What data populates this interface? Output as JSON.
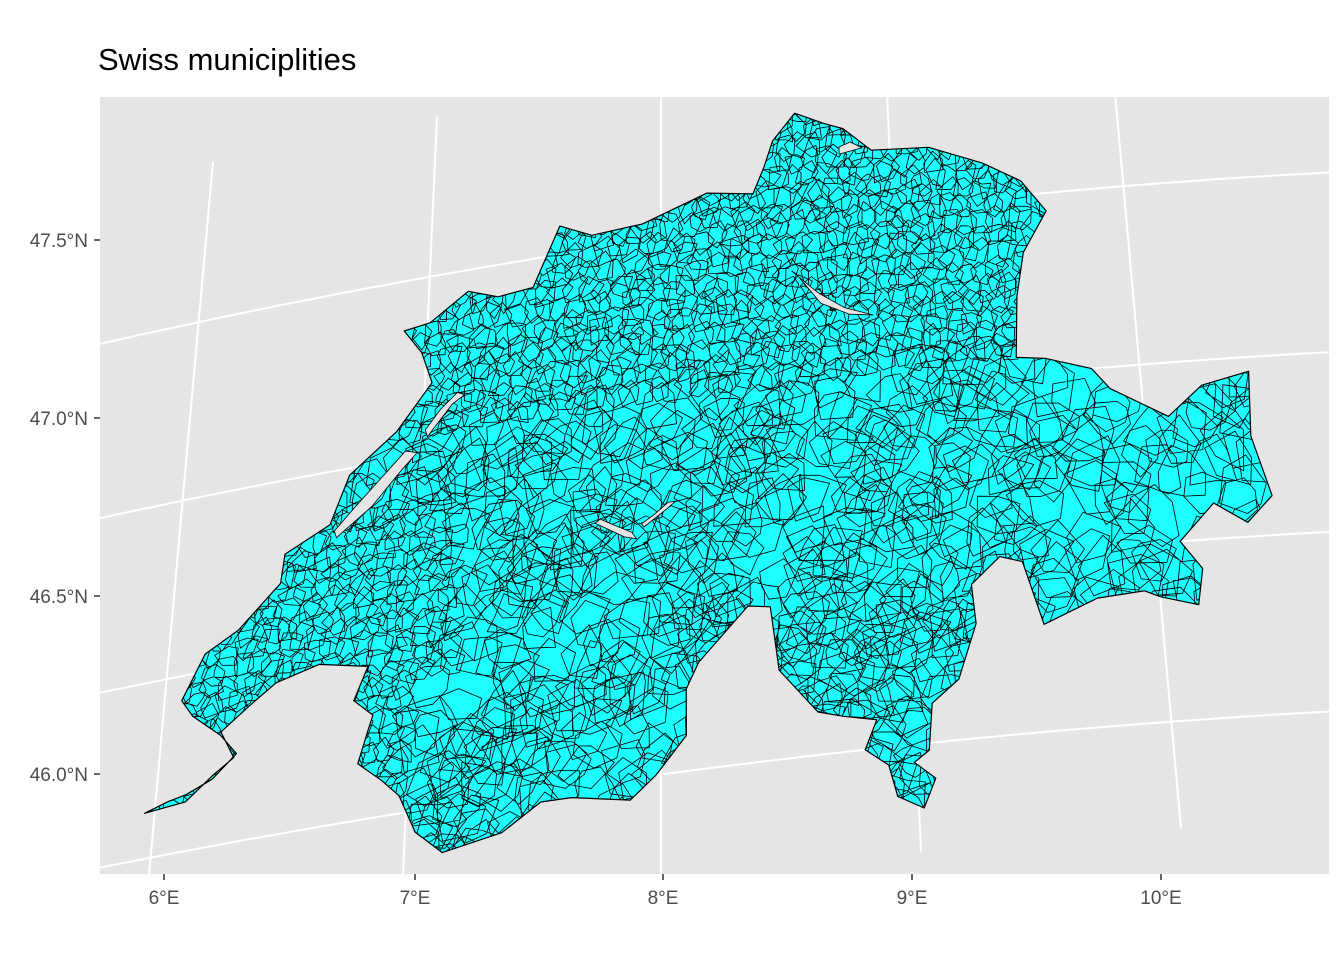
{
  "title": "Swiss municiplities",
  "chart_data": {
    "type": "map",
    "title": "Swiss municiplities",
    "projection": "conic",
    "panel_background": "#e5e5e5",
    "grid_color": "#ffffff",
    "fill_color": "#1dfffe",
    "border_color": "#000000",
    "x_axis": {
      "label": "",
      "ticks": [
        {
          "value": 6,
          "label": "6°E"
        },
        {
          "value": 7,
          "label": "7°E"
        },
        {
          "value": 8,
          "label": "8°E"
        },
        {
          "value": 9,
          "label": "9°E"
        },
        {
          "value": 10,
          "label": "10°E"
        }
      ]
    },
    "y_axis": {
      "label": "",
      "ticks": [
        {
          "value": 46.0,
          "label": "46.0°N"
        },
        {
          "value": 46.5,
          "label": "46.5°N"
        },
        {
          "value": 47.0,
          "label": "47.0°N"
        },
        {
          "value": 47.5,
          "label": "47.5°N"
        }
      ]
    },
    "lon_range": [
      5.9,
      10.5
    ],
    "lat_range": [
      45.8,
      47.85
    ],
    "outline": [
      [
        5.96,
        46.13
      ],
      [
        6.05,
        46.15
      ],
      [
        6.12,
        46.16
      ],
      [
        6.22,
        46.19
      ],
      [
        6.31,
        46.25
      ],
      [
        6.24,
        46.31
      ],
      [
        6.12,
        46.38
      ],
      [
        6.07,
        46.43
      ],
      [
        6.15,
        46.55
      ],
      [
        6.28,
        46.6
      ],
      [
        6.44,
        46.71
      ],
      [
        6.45,
        46.79
      ],
      [
        6.63,
        46.85
      ],
      [
        6.7,
        46.98
      ],
      [
        6.89,
        47.08
      ],
      [
        7.03,
        47.2
      ],
      [
        6.98,
        47.29
      ],
      [
        6.9,
        47.36
      ],
      [
        7.01,
        47.37
      ],
      [
        7.17,
        47.44
      ],
      [
        7.3,
        47.41
      ],
      [
        7.45,
        47.42
      ],
      [
        7.56,
        47.58
      ],
      [
        7.7,
        47.54
      ],
      [
        7.92,
        47.55
      ],
      [
        8.2,
        47.61
      ],
      [
        8.4,
        47.59
      ],
      [
        8.45,
        47.66
      ],
      [
        8.49,
        47.73
      ],
      [
        8.59,
        47.8
      ],
      [
        8.72,
        47.76
      ],
      [
        8.8,
        47.74
      ],
      [
        8.92,
        47.67
      ],
      [
        9.17,
        47.66
      ],
      [
        9.4,
        47.6
      ],
      [
        9.56,
        47.54
      ],
      [
        9.66,
        47.45
      ],
      [
        9.55,
        47.34
      ],
      [
        9.51,
        47.22
      ],
      [
        9.49,
        47.05
      ],
      [
        9.61,
        47.04
      ],
      [
        9.8,
        47.0
      ],
      [
        9.87,
        46.94
      ],
      [
        10.1,
        46.85
      ],
      [
        10.25,
        46.93
      ],
      [
        10.45,
        46.96
      ],
      [
        10.43,
        46.78
      ],
      [
        10.49,
        46.61
      ],
      [
        10.38,
        46.54
      ],
      [
        10.25,
        46.6
      ],
      [
        10.1,
        46.5
      ],
      [
        10.18,
        46.42
      ],
      [
        10.15,
        46.32
      ],
      [
        10.0,
        46.35
      ],
      [
        9.94,
        46.37
      ],
      [
        9.75,
        46.36
      ],
      [
        9.53,
        46.3
      ],
      [
        9.46,
        46.48
      ],
      [
        9.37,
        46.5
      ],
      [
        9.25,
        46.43
      ],
      [
        9.26,
        46.32
      ],
      [
        9.18,
        46.17
      ],
      [
        9.07,
        46.11
      ],
      [
        9.05,
        45.98
      ],
      [
        8.99,
        45.95
      ],
      [
        9.07,
        45.9
      ],
      [
        9.02,
        45.82
      ],
      [
        8.92,
        45.86
      ],
      [
        8.89,
        45.95
      ],
      [
        8.8,
        46.0
      ],
      [
        8.85,
        46.08
      ],
      [
        8.72,
        46.1
      ],
      [
        8.62,
        46.12
      ],
      [
        8.47,
        46.25
      ],
      [
        8.44,
        46.43
      ],
      [
        8.35,
        46.44
      ],
      [
        8.15,
        46.3
      ],
      [
        8.1,
        46.23
      ],
      [
        8.1,
        46.1
      ],
      [
        7.98,
        46.0
      ],
      [
        7.88,
        45.94
      ],
      [
        7.65,
        45.97
      ],
      [
        7.53,
        45.97
      ],
      [
        7.38,
        45.9
      ],
      [
        7.15,
        45.87
      ],
      [
        7.04,
        45.94
      ],
      [
        6.97,
        46.05
      ],
      [
        6.9,
        46.1
      ],
      [
        6.8,
        46.16
      ],
      [
        6.83,
        46.24
      ],
      [
        6.85,
        46.29
      ],
      [
        6.77,
        46.34
      ],
      [
        6.82,
        46.43
      ],
      [
        6.62,
        46.46
      ],
      [
        6.45,
        46.43
      ],
      [
        6.35,
        46.38
      ],
      [
        6.24,
        46.32
      ],
      [
        6.3,
        46.24
      ],
      [
        6.22,
        46.2
      ],
      [
        6.12,
        46.14
      ],
      [
        5.96,
        46.13
      ]
    ],
    "lakes": [
      [
        [
          6.66,
          46.81
        ],
        [
          6.8,
          46.88
        ],
        [
          6.92,
          46.97
        ],
        [
          6.98,
          47.01
        ],
        [
          6.93,
          47.02
        ],
        [
          6.84,
          46.96
        ],
        [
          6.72,
          46.88
        ],
        [
          6.65,
          46.83
        ]
      ],
      [
        [
          7.02,
          47.05
        ],
        [
          7.12,
          47.13
        ],
        [
          7.17,
          47.15
        ],
        [
          7.14,
          47.16
        ],
        [
          7.07,
          47.12
        ],
        [
          7.01,
          47.07
        ]
      ],
      [
        [
          7.73,
          46.73
        ],
        [
          7.85,
          46.68
        ],
        [
          7.9,
          46.67
        ],
        [
          7.88,
          46.69
        ],
        [
          7.8,
          46.72
        ],
        [
          7.75,
          46.74
        ]
      ],
      [
        [
          7.93,
          46.7
        ],
        [
          8.02,
          46.74
        ],
        [
          8.06,
          46.76
        ],
        [
          8.03,
          46.76
        ],
        [
          7.97,
          46.73
        ],
        [
          7.92,
          46.71
        ]
      ],
      [
        [
          8.58,
          47.35
        ],
        [
          8.68,
          47.26
        ],
        [
          8.8,
          47.22
        ],
        [
          8.9,
          47.21
        ],
        [
          8.78,
          47.24
        ],
        [
          8.67,
          47.29
        ],
        [
          8.56,
          47.36
        ]
      ],
      [
        [
          8.78,
          47.67
        ],
        [
          8.88,
          47.68
        ],
        [
          8.83,
          47.7
        ],
        [
          8.78,
          47.69
        ]
      ]
    ]
  }
}
